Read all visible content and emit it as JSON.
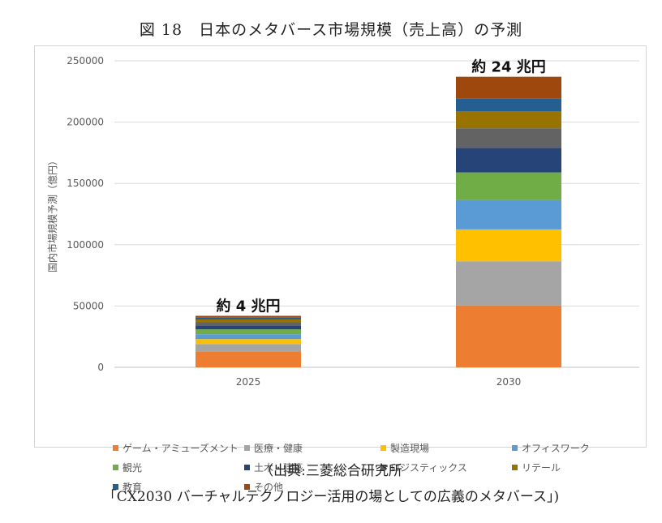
{
  "figure": {
    "title": "図 18　日本のメタバース市場規模（売上高）の予測",
    "source_line1": "（出典:三菱総合研究所",
    "source_line2": "「CX2030 バーチャルテクノロジー活用の場としての広義のメタバース」)"
  },
  "colors": {
    "gridline": "#d9d9d9",
    "axis": "#bfbfbf"
  },
  "chart_data": {
    "type": "bar",
    "stacked": true,
    "categories": [
      "2025",
      "2030"
    ],
    "ylabel": "国内市場規模予測（億円）",
    "xlabel": "",
    "ylim": [
      0,
      250000
    ],
    "yticks": [
      "0",
      "50000",
      "100000",
      "150000",
      "200000",
      "250000"
    ],
    "grid": true,
    "legend_position": "bottom",
    "annotations": [
      "約 4 兆円",
      "約 24 兆円"
    ],
    "series": [
      {
        "name": "ゲーム・アミューズメント",
        "color": "#ed7d31",
        "values": [
          13000,
          50500
        ]
      },
      {
        "name": "医療・健康",
        "color": "#a5a5a5",
        "values": [
          6000,
          36000
        ]
      },
      {
        "name": "製造現場",
        "color": "#ffc000",
        "values": [
          4000,
          26000
        ]
      },
      {
        "name": "オフィスワーク",
        "color": "#5b9bd5",
        "values": [
          4000,
          24000
        ]
      },
      {
        "name": "観光",
        "color": "#70ad47",
        "values": [
          4000,
          22500
        ]
      },
      {
        "name": "土木・建築",
        "color": "#264478",
        "values": [
          3000,
          20000
        ]
      },
      {
        "name": "ロジスティックス",
        "color": "#636363",
        "values": [
          3000,
          16000
        ]
      },
      {
        "name": "リテール",
        "color": "#997300",
        "values": [
          2000,
          14000
        ]
      },
      {
        "name": "教育",
        "color": "#255e91",
        "values": [
          1500,
          10000
        ]
      },
      {
        "name": "その他",
        "color": "#9e480e",
        "values": [
          1500,
          18000
        ]
      }
    ]
  }
}
